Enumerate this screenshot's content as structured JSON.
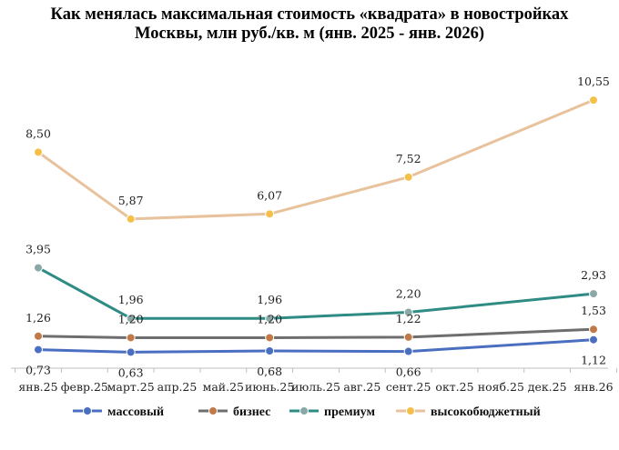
{
  "chart_data": {
    "type": "line",
    "title": "Как менялась максимальная стоимость «квадрата» в новостройках Москвы, млн руб./кв. м (янв. 2025 - янв. 2026)",
    "xlabel": "",
    "ylabel": "",
    "categories": [
      "янв.25",
      "февр.25",
      "март.25",
      "апр.25",
      "май.25",
      "июнь.25",
      "июль.25",
      "авг.25",
      "сент.25",
      "окт.25",
      "нояб.25",
      "дек.25",
      "янв.26"
    ],
    "ylim": [
      0,
      11.2
    ],
    "grid": false,
    "legend_position": "bottom",
    "series": [
      {
        "name": "массовый",
        "color": "#4A6FC0",
        "points": [
          {
            "x": "янв.25",
            "y": 0.73
          },
          {
            "x": "март.25",
            "y": 0.63
          },
          {
            "x": "июнь.25",
            "y": 0.68
          },
          {
            "x": "сент.25",
            "y": 0.66
          },
          {
            "x": "янв.26",
            "y": 1.12
          }
        ]
      },
      {
        "name": "бизнес",
        "color": "#6E6E6E",
        "marker_color": "#C07A4A",
        "points": [
          {
            "x": "янв.25",
            "y": 1.26
          },
          {
            "x": "март.25",
            "y": 1.2
          },
          {
            "x": "июнь.25",
            "y": 1.2
          },
          {
            "x": "сент.25",
            "y": 1.22
          },
          {
            "x": "янв.26",
            "y": 1.53
          }
        ]
      },
      {
        "name": "премиум",
        "color": "#2E8C84",
        "marker_color": "#8AA8A6",
        "points": [
          {
            "x": "янв.25",
            "y": 3.95
          },
          {
            "x": "март.25",
            "y": 1.96
          },
          {
            "x": "июнь.25",
            "y": 1.96
          },
          {
            "x": "сент.25",
            "y": 2.2
          },
          {
            "x": "янв.26",
            "y": 2.93
          }
        ]
      },
      {
        "name": "высокобюджетный",
        "color": "#E8C29C",
        "marker_color": "#F5C04A",
        "points": [
          {
            "x": "янв.25",
            "y": 8.5
          },
          {
            "x": "март.25",
            "y": 5.87
          },
          {
            "x": "июнь.25",
            "y": 6.07
          },
          {
            "x": "сент.25",
            "y": 7.52
          },
          {
            "x": "янв.26",
            "y": 10.55
          }
        ]
      }
    ],
    "data_labels": [
      {
        "series": "массовый",
        "values": [
          "0,73",
          "0,63",
          "0,68",
          "0,66",
          "1,12"
        ]
      },
      {
        "series": "бизнес",
        "values": [
          "1,26",
          "1,20",
          "1,20",
          "1,22",
          "1,53"
        ]
      },
      {
        "series": "премиум",
        "values": [
          "3,95",
          "1,96",
          "1,96",
          "2,20",
          "2,93"
        ]
      },
      {
        "series": "высокобюджетный",
        "values": [
          "8,50",
          "5,87",
          "6,07",
          "7,52",
          "10,55"
        ]
      }
    ]
  }
}
